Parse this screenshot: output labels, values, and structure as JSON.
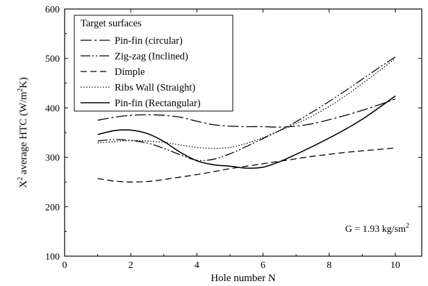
{
  "chart_data": {
    "type": "line",
    "title": "",
    "xlabel": "Hole number N",
    "ylabel_prefix": "X",
    "ylabel_sup": "2",
    "ylabel_mid": " average HTC (W/m",
    "ylabel_unit_sup": "2",
    "ylabel_suffix": "K)",
    "xlim": [
      0,
      10.8
    ],
    "ylim": [
      100,
      600
    ],
    "xticks": [
      0,
      2,
      4,
      6,
      8,
      10
    ],
    "yticks": [
      100,
      200,
      300,
      400,
      500,
      600
    ],
    "grid": false,
    "legend": {
      "title": "Target surfaces",
      "placement": "top-left"
    },
    "annotation": {
      "prefix": "G = 1.93 kg/sm",
      "sup": "2"
    },
    "series": [
      {
        "name": "Pin-fin (circular)",
        "dash": "16,4,3,4",
        "x": [
          1,
          1.5,
          2,
          2.5,
          3,
          3.5,
          4,
          4.5,
          5,
          5.5,
          6,
          6.5,
          7,
          7.5,
          8,
          8.5,
          9,
          9.5,
          10
        ],
        "y": [
          375,
          381,
          385,
          386,
          385,
          381,
          373,
          366,
          363,
          362,
          362,
          361,
          363,
          368,
          376,
          385,
          395,
          406,
          418
        ]
      },
      {
        "name": "Zig-zag (Inclined)",
        "dash": "14,3,2,3,2,3",
        "x": [
          1,
          1.5,
          2,
          2.5,
          3,
          3.5,
          4,
          4.5,
          5,
          5.5,
          6,
          6.5,
          7,
          7.5,
          8,
          8.5,
          9,
          9.5,
          10
        ],
        "y": [
          333,
          336,
          334,
          329,
          318,
          305,
          294,
          296,
          307,
          322,
          338,
          354,
          372,
          392,
          413,
          435,
          458,
          481,
          503
        ]
      },
      {
        "name": "Dimple",
        "dash": "9,5",
        "x": [
          1,
          1.5,
          2,
          2.5,
          3,
          3.5,
          4,
          4.5,
          5,
          5.5,
          6,
          6.5,
          7,
          7.5,
          8,
          8.5,
          9,
          9.5,
          10
        ],
        "y": [
          257,
          252,
          250,
          251,
          255,
          260,
          265,
          271,
          277,
          282,
          287,
          292,
          297,
          302,
          306,
          310,
          313,
          316,
          319
        ]
      },
      {
        "name": "Ribs Wall (Straight)",
        "dash": "1.5,2.5",
        "x": [
          1,
          1.5,
          2,
          2.5,
          3,
          3.5,
          4,
          4.5,
          5,
          5.5,
          6,
          6.5,
          7,
          7.5,
          8,
          8.5,
          9,
          9.5,
          10
        ],
        "y": [
          329,
          332,
          334,
          333,
          330,
          325,
          320,
          318,
          320,
          328,
          340,
          354,
          368,
          384,
          403,
          425,
          449,
          474,
          500
        ]
      },
      {
        "name": "Pin-fin (Rectangular)",
        "dash": "",
        "x": [
          1,
          1.5,
          2,
          2.5,
          3,
          3.5,
          4,
          4.5,
          5,
          5.5,
          6,
          6.5,
          7,
          7.5,
          8,
          8.5,
          9,
          9.5,
          10
        ],
        "y": [
          346,
          354,
          355,
          348,
          332,
          310,
          293,
          285,
          282,
          278,
          280,
          291,
          306,
          322,
          339,
          357,
          377,
          400,
          424
        ]
      }
    ]
  }
}
